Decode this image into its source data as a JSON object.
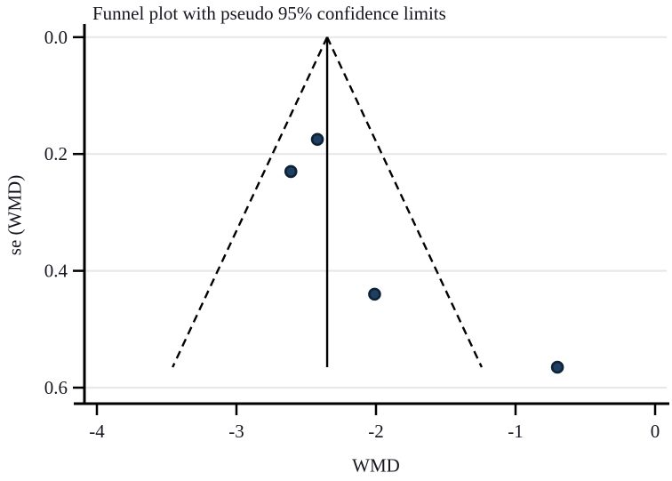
{
  "figure": {
    "title": "Funnel plot with pseudo 95% confidence limits",
    "xlabel": "WMD",
    "ylabel": "se (WMD)"
  },
  "chart_data": {
    "type": "scatter",
    "subtype": "funnel-plot",
    "title": "Funnel plot with pseudo 95% confidence limits",
    "xlabel": "WMD",
    "ylabel": "se (WMD)",
    "xlim": [
      -4,
      0
    ],
    "ylim": [
      0,
      0.6
    ],
    "y_axis_reversed": true,
    "grid": "horizontal",
    "legend": "none",
    "x_ticks": [
      {
        "value": -4,
        "label": "-4"
      },
      {
        "value": -3,
        "label": "-3"
      },
      {
        "value": -2,
        "label": "-2"
      },
      {
        "value": -1,
        "label": "-1"
      },
      {
        "value": 0,
        "label": "0"
      }
    ],
    "y_ticks": [
      {
        "value": 0.0,
        "label": "0.0"
      },
      {
        "value": 0.2,
        "label": "0.2"
      },
      {
        "value": 0.4,
        "label": "0.4"
      },
      {
        "value": 0.6,
        "label": "0.6"
      }
    ],
    "points": [
      {
        "wmd": -2.42,
        "se": 0.175
      },
      {
        "wmd": -2.61,
        "se": 0.23
      },
      {
        "wmd": -2.01,
        "se": 0.44
      },
      {
        "wmd": -0.7,
        "se": 0.565
      }
    ],
    "pooled_effect_wmd": -2.35,
    "funnel": {
      "ci_multiplier": 1.96,
      "max_se": 0.565,
      "line_style": "dashed"
    },
    "colors": {
      "marker_fill": "#1d3f63",
      "marker_stroke": "#0e2233",
      "funnel_line": "#000000",
      "pooled_line": "#000000",
      "axis": "#000000",
      "grid": "#e8e8e8",
      "text": "#161620",
      "background": "#ffffff"
    }
  }
}
